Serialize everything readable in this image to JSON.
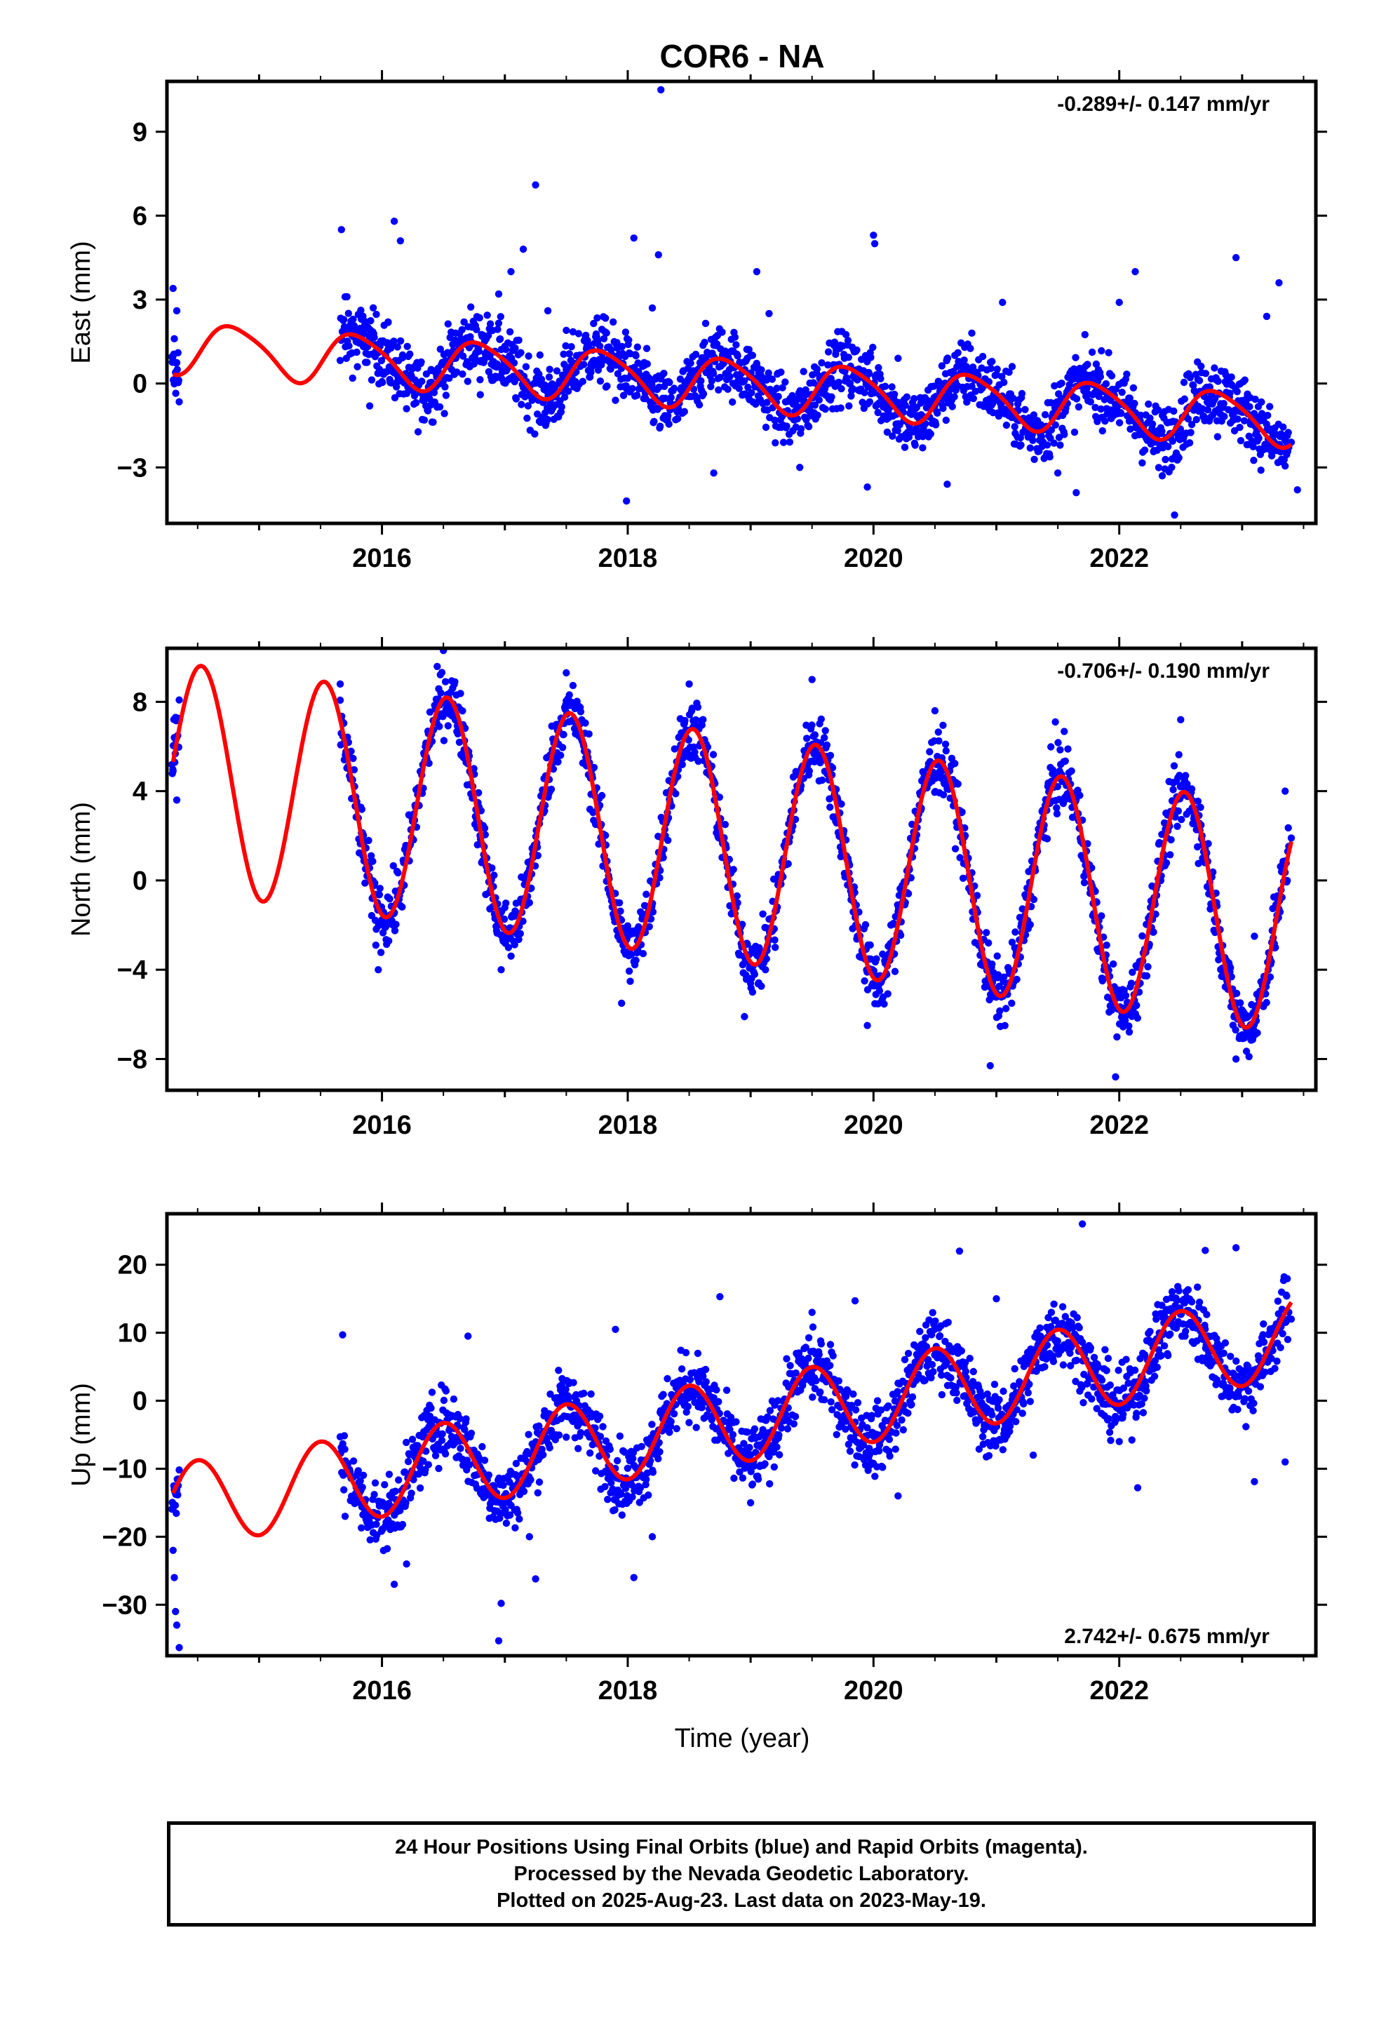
{
  "figure": {
    "title": "COR6 - NA",
    "xlabel": "Time (year)"
  },
  "footer": {
    "line1": "24 Hour Positions Using Final Orbits (blue) and Rapid Orbits (magenta).",
    "line2": "Processed by the Nevada Geodetic Laboratory.",
    "line3": "Plotted on 2025-Aug-23. Last data on 2023-May-19."
  },
  "colors": {
    "points": "#0000ff",
    "model": "#ff0000",
    "axis": "#000000",
    "background": "#ffffff"
  },
  "chart_data": [
    {
      "type": "scatter",
      "ylabel": "East (mm)",
      "xlim": [
        2014.25,
        2023.6
      ],
      "ylim": [
        -5,
        10.8
      ],
      "xticks": [
        2016,
        2018,
        2020,
        2022
      ],
      "yticks": [
        -3,
        0,
        3,
        6,
        9
      ],
      "rate_label": "-0.289+/- 0.147 mm/yr",
      "rate_position": "top-right",
      "series": [
        {
          "kind": "observations",
          "color": "#0000ff",
          "points": [
            [
              2014.3,
              3.4
            ],
            [
              2014.31,
              1.6
            ],
            [
              2014.32,
              0.4
            ],
            [
              2014.33,
              2.6
            ],
            [
              2014.34,
              1.1
            ],
            [
              2015.67,
              5.5
            ],
            [
              2015.7,
              3.1
            ],
            [
              2015.75,
              2.0
            ],
            [
              2015.8,
              0.6
            ],
            [
              2015.85,
              1.9
            ],
            [
              2015.9,
              -0.8
            ],
            [
              2016.05,
              2.2
            ],
            [
              2016.1,
              5.8
            ],
            [
              2016.15,
              5.1
            ],
            [
              2016.2,
              -0.9
            ],
            [
              2016.4,
              0.5
            ],
            [
              2016.6,
              1.8
            ],
            [
              2016.8,
              -0.4
            ],
            [
              2016.95,
              3.2
            ],
            [
              2017.05,
              4.0
            ],
            [
              2017.15,
              4.8
            ],
            [
              2017.25,
              7.1
            ],
            [
              2017.35,
              2.6
            ],
            [
              2017.5,
              1.9
            ],
            [
              2017.7,
              0.4
            ],
            [
              2017.9,
              -0.6
            ],
            [
              2017.99,
              -4.2
            ],
            [
              2018.05,
              5.2
            ],
            [
              2018.2,
              2.7
            ],
            [
              2018.25,
              4.6
            ],
            [
              2018.27,
              10.5
            ],
            [
              2018.5,
              0.2
            ],
            [
              2018.7,
              -3.2
            ],
            [
              2018.85,
              0.6
            ],
            [
              2019.05,
              4.0
            ],
            [
              2019.15,
              2.5
            ],
            [
              2019.4,
              -3.0
            ],
            [
              2019.6,
              0.2
            ],
            [
              2019.8,
              -0.8
            ],
            [
              2019.95,
              -3.7
            ],
            [
              2020.0,
              5.3
            ],
            [
              2020.01,
              5.0
            ],
            [
              2020.2,
              0.9
            ],
            [
              2020.4,
              -2.3
            ],
            [
              2020.6,
              -3.6
            ],
            [
              2020.8,
              1.8
            ],
            [
              2021.05,
              2.9
            ],
            [
              2021.3,
              -1.5
            ],
            [
              2021.5,
              -3.2
            ],
            [
              2021.65,
              -3.9
            ],
            [
              2021.85,
              -0.3
            ],
            [
              2022.0,
              2.9
            ],
            [
              2022.13,
              4.0
            ],
            [
              2022.2,
              -1.5
            ],
            [
              2022.35,
              -3.3
            ],
            [
              2022.45,
              -4.7
            ],
            [
              2022.55,
              0.3
            ],
            [
              2022.8,
              -1.9
            ],
            [
              2022.95,
              4.5
            ],
            [
              2023.2,
              2.4
            ],
            [
              2023.3,
              3.6
            ],
            [
              2023.4,
              -2.1
            ],
            [
              2023.45,
              -3.8
            ]
          ]
        },
        {
          "kind": "model",
          "color": "#ff0000",
          "trend": -0.289,
          "intercept": 1.32,
          "annual_amplitude": 0.9,
          "annual_phase": 0.55,
          "semiannual_amplitude": 0.15,
          "t_start": 2014.3,
          "t_end": 2023.4
        }
      ]
    },
    {
      "type": "scatter",
      "ylabel": "North (mm)",
      "xlim": [
        2014.25,
        2023.6
      ],
      "ylim": [
        -9.4,
        10.4
      ],
      "xticks": [
        2016,
        2018,
        2020,
        2022
      ],
      "yticks": [
        -8,
        -4,
        0,
        4,
        8
      ],
      "rate_label": "-0.706+/- 0.190 mm/yr",
      "rate_position": "top-right",
      "series": [
        {
          "kind": "observations",
          "color": "#0000ff",
          "points": [
            [
              2014.3,
              4.9
            ],
            [
              2014.32,
              7.3
            ],
            [
              2014.33,
              3.6
            ],
            [
              2015.66,
              8.8
            ],
            [
              2015.95,
              -2.9
            ],
            [
              2015.97,
              -4.0
            ],
            [
              2016.5,
              10.3
            ],
            [
              2016.97,
              -4.0
            ],
            [
              2017.5,
              9.3
            ],
            [
              2017.95,
              -5.5
            ],
            [
              2018.5,
              8.8
            ],
            [
              2018.95,
              -6.1
            ],
            [
              2019.5,
              9.0
            ],
            [
              2019.95,
              -6.5
            ],
            [
              2020.5,
              7.6
            ],
            [
              2020.95,
              -8.3
            ],
            [
              2021.48,
              7.1
            ],
            [
              2021.97,
              -8.8
            ],
            [
              2022.5,
              7.2
            ],
            [
              2022.95,
              -8.0
            ],
            [
              2023.35,
              4.0
            ],
            [
              2023.4,
              1.9
            ],
            [
              2023.1,
              -2.5
            ],
            [
              2017.2,
              -1.0
            ],
            [
              2019.2,
              -3.0
            ]
          ]
        },
        {
          "kind": "model",
          "color": "#ff0000",
          "trend": -0.706,
          "intercept": 4.67,
          "annual_amplitude": 5.1,
          "annual_phase": 0.28,
          "semiannual_amplitude": 0.0,
          "t_start": 2014.3,
          "t_end": 2023.4
        }
      ]
    },
    {
      "type": "scatter",
      "ylabel": "Up (mm)",
      "xlim": [
        2014.25,
        2023.6
      ],
      "ylim": [
        -37.5,
        27.5
      ],
      "xticks": [
        2016,
        2018,
        2020,
        2022
      ],
      "yticks": [
        -30,
        -20,
        -10,
        0,
        10,
        20
      ],
      "rate_label": "2.742+/- 0.675 mm/yr",
      "rate_position": "bottom-right",
      "series": [
        {
          "kind": "observations",
          "color": "#0000ff",
          "points": [
            [
              2014.3,
              -22.0
            ],
            [
              2014.31,
              -26.0
            ],
            [
              2014.32,
              -31.0
            ],
            [
              2014.33,
              -33.0
            ],
            [
              2014.35,
              -36.3
            ],
            [
              2015.68,
              9.7
            ],
            [
              2015.7,
              -17.0
            ],
            [
              2016.1,
              -27.0
            ],
            [
              2016.2,
              -24.0
            ],
            [
              2016.7,
              9.5
            ],
            [
              2016.95,
              -35.3
            ],
            [
              2016.97,
              -29.8
            ],
            [
              2017.2,
              -20.0
            ],
            [
              2017.25,
              -26.2
            ],
            [
              2017.9,
              10.5
            ],
            [
              2018.05,
              -26.0
            ],
            [
              2018.2,
              -20.0
            ],
            [
              2018.75,
              15.3
            ],
            [
              2019.0,
              -15.0
            ],
            [
              2019.5,
              13.0
            ],
            [
              2019.85,
              14.7
            ],
            [
              2020.2,
              -14.0
            ],
            [
              2020.7,
              22.0
            ],
            [
              2021.0,
              15.0
            ],
            [
              2021.3,
              -8.0
            ],
            [
              2021.7,
              26.0
            ],
            [
              2022.0,
              -6.0
            ],
            [
              2022.15,
              -12.8
            ],
            [
              2022.7,
              22.1
            ],
            [
              2022.95,
              22.5
            ],
            [
              2023.1,
              -11.9
            ],
            [
              2023.35,
              -9.0
            ],
            [
              2023.4,
              12.0
            ]
          ]
        },
        {
          "kind": "model",
          "color": "#ff0000",
          "trend": 2.742,
          "intercept": -15.5,
          "annual_amplitude": 6.2,
          "annual_phase": 0.25,
          "semiannual_amplitude": 0.0,
          "t_start": 2014.3,
          "t_end": 2023.4
        }
      ]
    }
  ]
}
